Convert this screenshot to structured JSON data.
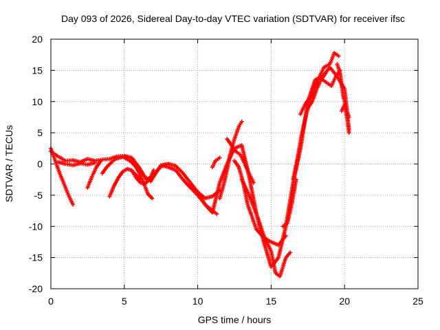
{
  "chart_data": {
    "type": "scatter",
    "title": "Day 093 of 2026, Sidereal Day-to-day VTEC variation (SDTVAR) for receiver ifsc",
    "xlabel": "GPS time / hours",
    "ylabel": "SDTVAR / TECUs",
    "xlim": [
      0,
      25
    ],
    "ylim": [
      -20,
      20
    ],
    "x_ticks": [
      "0",
      "5",
      "10",
      "15",
      "20",
      "25"
    ],
    "y_ticks": [
      "-20",
      "-15",
      "-10",
      "-5",
      "0",
      "5",
      "10",
      "15",
      "20"
    ],
    "grid": true,
    "marker": "+",
    "color": "#ff0000",
    "series": [
      {
        "x": [
          0.0,
          0.5,
          1.0,
          1.5,
          2.0,
          2.5,
          3.0,
          3.5,
          4.0,
          4.5,
          5.0,
          5.5,
          6.0,
          6.5,
          7.0,
          7.5,
          8.0,
          8.5,
          9.0,
          9.5,
          10.0,
          10.5,
          11.0,
          11.5,
          12.0,
          12.5,
          13.0,
          13.5,
          14.0,
          14.5,
          15.0,
          15.5,
          16.0,
          16.5,
          17.0,
          17.5,
          18.0,
          18.5,
          19.0,
          19.5,
          20.0,
          20.3
        ],
        "y": [
          2.0,
          1.2,
          0.5,
          0.6,
          0.3,
          0.8,
          0.5,
          0.7,
          0.8,
          1.2,
          1.3,
          1.0,
          -0.5,
          -2.5,
          -2.0,
          -0.2,
          0.0,
          -0.3,
          -1.5,
          -3.0,
          -4.5,
          -6.5,
          -7.8,
          -3.0,
          0.0,
          2.5,
          3.0,
          -2.0,
          -8.0,
          -12.5,
          -16.5,
          -15.0,
          -10.0,
          -3.0,
          2.5,
          10.0,
          13.5,
          14.0,
          15.5,
          14.0,
          12.0,
          5.5
        ]
      },
      {
        "x": [
          0.0,
          0.3,
          0.6,
          0.9,
          1.2,
          1.5
        ],
        "y": [
          2.5,
          0.5,
          -1.5,
          -3.2,
          -5.0,
          -6.5
        ]
      },
      {
        "x": [
          0.5,
          1.0,
          1.5,
          2.0,
          2.5,
          3.0
        ],
        "y": [
          0.3,
          0.0,
          -0.2,
          0.1,
          -0.1,
          0.2
        ]
      },
      {
        "x": [
          2.5,
          2.8,
          3.1,
          3.4
        ],
        "y": [
          -3.8,
          -2.0,
          -0.5,
          0.5
        ]
      },
      {
        "x": [
          3.5,
          3.8,
          4.1,
          4.4,
          4.7,
          5.0,
          5.3,
          5.6
        ],
        "y": [
          -1.5,
          -0.5,
          0.2,
          0.8,
          1.0,
          1.2,
          1.0,
          0.8
        ]
      },
      {
        "x": [
          4.0,
          4.3,
          4.6,
          4.9,
          5.2,
          5.5,
          5.8,
          6.1
        ],
        "y": [
          -5.2,
          -3.5,
          -2.2,
          -1.2,
          -0.8,
          -1.0,
          -1.8,
          -2.5
        ]
      },
      {
        "x": [
          5.5,
          5.8,
          6.1,
          6.4,
          6.7,
          7.0
        ],
        "y": [
          -1.0,
          -2.2,
          -3.0,
          -3.2,
          -2.5,
          -1.0
        ]
      },
      {
        "x": [
          6.5,
          6.8,
          7.1,
          7.4,
          7.7,
          8.0
        ],
        "y": [
          -2.2,
          -2.8,
          -1.5,
          -0.6,
          -0.2,
          0.0
        ]
      },
      {
        "x": [
          5.0,
          5.4,
          5.8,
          6.1,
          6.4,
          6.6,
          6.9
        ],
        "y": [
          1.0,
          0.5,
          -0.5,
          -1.8,
          -3.5,
          -4.8,
          -5.5
        ]
      },
      {
        "x": [
          7.5,
          8.0,
          8.5,
          9.0,
          9.5,
          10.0,
          10.5,
          11.0,
          11.3
        ],
        "y": [
          -0.2,
          -0.5,
          -1.0,
          -2.5,
          -3.8,
          -5.0,
          -6.5,
          -7.5,
          -8.0
        ]
      },
      {
        "x": [
          9.5,
          10.0,
          10.5,
          11.0,
          11.5
        ],
        "y": [
          -3.5,
          -4.5,
          -5.5,
          -5.2,
          -4.2
        ]
      },
      {
        "x": [
          11.0,
          11.2,
          11.5
        ],
        "y": [
          -0.5,
          0.5,
          1.0
        ]
      },
      {
        "x": [
          11.5,
          11.8,
          12.0,
          12.2,
          12.5,
          12.8,
          13.0
        ],
        "y": [
          -5.5,
          -3.0,
          -1.0,
          1.5,
          4.0,
          6.0,
          6.8
        ]
      },
      {
        "x": [
          12.0,
          12.3,
          12.6,
          12.9,
          13.2,
          13.5,
          13.8
        ],
        "y": [
          4.0,
          3.0,
          2.0,
          1.5,
          0.0,
          -1.5,
          -3.0
        ]
      },
      {
        "x": [
          12.5,
          12.8,
          13.1,
          13.4,
          13.7,
          14.0,
          14.5,
          15.0,
          15.5,
          16.0
        ],
        "y": [
          0.5,
          -0.5,
          -3.0,
          -6.5,
          -8.5,
          -10.5,
          -11.8,
          -12.5,
          -13.0,
          -11.5
        ]
      },
      {
        "x": [
          13.0,
          13.5,
          14.0,
          14.5,
          15.0,
          15.3,
          15.6,
          16.0,
          16.3
        ],
        "y": [
          -2.5,
          -5.0,
          -8.0,
          -11.5,
          -14.0,
          -17.5,
          -18.0,
          -15.0,
          -14.2
        ]
      },
      {
        "x": [
          15.8,
          16.1,
          16.4,
          16.7
        ],
        "y": [
          -10.0,
          -9.5,
          -6.5,
          -2.5
        ]
      },
      {
        "x": [
          16.5,
          16.8,
          17.1,
          17.4,
          17.7,
          18.0,
          18.3
        ],
        "y": [
          -2.5,
          1.0,
          5.0,
          8.0,
          10.5,
          12.5,
          14.0
        ]
      },
      {
        "x": [
          17.0,
          17.3,
          17.6,
          18.0,
          18.3,
          18.6,
          19.0,
          19.3,
          19.6
        ],
        "y": [
          8.0,
          9.5,
          10.5,
          11.5,
          14.0,
          15.5,
          16.0,
          17.8,
          17.3
        ]
      },
      {
        "x": [
          17.5,
          17.8,
          18.1,
          18.4,
          18.7
        ],
        "y": [
          9.0,
          10.0,
          12.0,
          13.5,
          14.5
        ]
      },
      {
        "x": [
          18.5,
          18.8,
          19.1,
          19.4,
          19.7
        ],
        "y": [
          13.5,
          13.0,
          12.5,
          14.0,
          15.0
        ]
      },
      {
        "x": [
          19.5,
          19.7,
          19.9,
          20.1,
          20.3
        ],
        "y": [
          16.0,
          14.5,
          11.0,
          9.0,
          7.5
        ]
      },
      {
        "x": [
          19.8,
          20.0,
          20.2,
          20.3
        ],
        "y": [
          8.5,
          9.5,
          7.0,
          5.0
        ]
      }
    ]
  }
}
